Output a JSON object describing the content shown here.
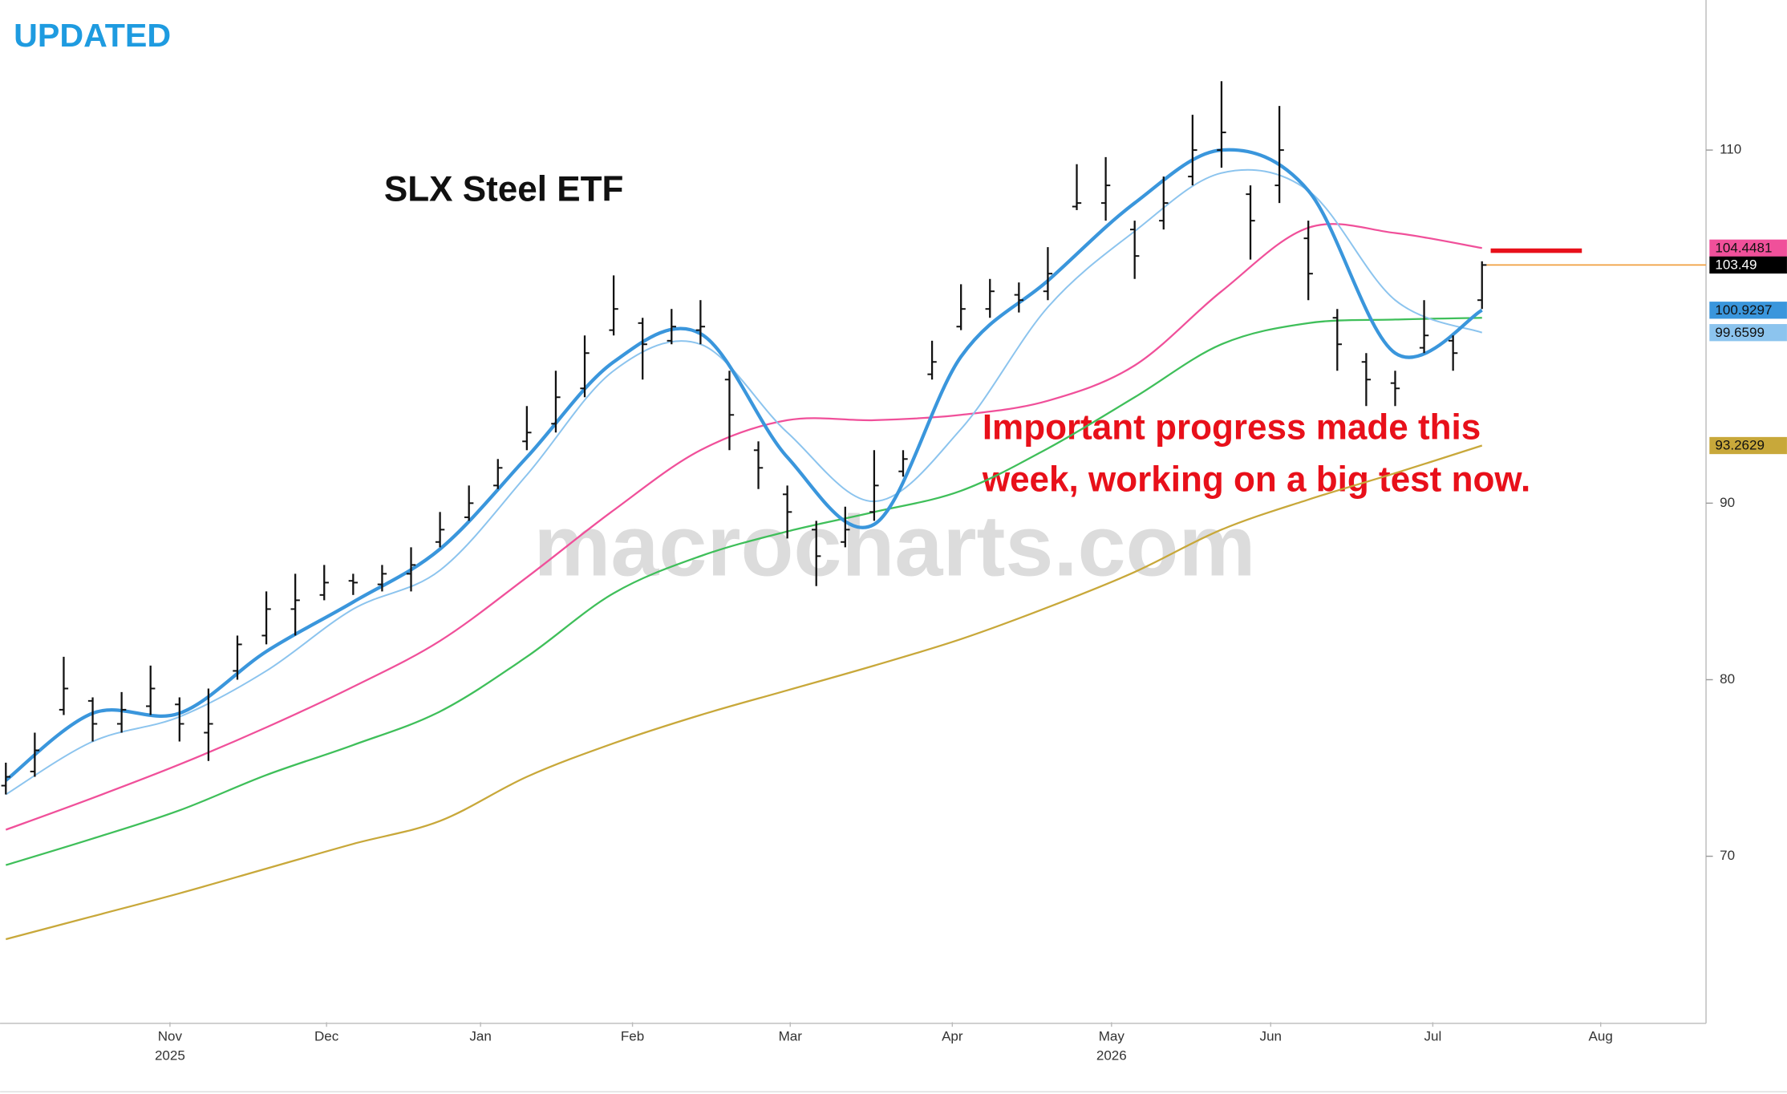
{
  "header": {
    "badge": "UPDATED"
  },
  "chart_data": {
    "type": "ohlc",
    "title": "SLX Steel ETF",
    "watermark": "macrocharts.com",
    "annotation_lines": [
      "Important progress made this",
      "week, working on a big test now."
    ],
    "categories": [
      null,
      null,
      null,
      null,
      null,
      null,
      null,
      null,
      null,
      null,
      null,
      null,
      null,
      null,
      null,
      null,
      null,
      null,
      null,
      null,
      null,
      null,
      null,
      null,
      null,
      null,
      null,
      null,
      null,
      null,
      null,
      null,
      null,
      null,
      null,
      null,
      null,
      null,
      null,
      null,
      null,
      null,
      null,
      null,
      null,
      null,
      null,
      null,
      null,
      null,
      null,
      null
    ],
    "open": [
      74,
      74.8,
      78.3,
      78.8,
      77.5,
      78.5,
      78.6,
      77,
      80.5,
      82.5,
      84,
      84.8,
      85.6,
      85.4,
      86,
      87.8,
      89.2,
      91,
      93.5,
      94.5,
      96.5,
      99.8,
      100.2,
      99.2,
      99.8,
      97,
      93,
      90.5,
      88.5,
      87.8,
      89.5,
      91.8,
      97.3,
      100,
      101,
      101.8,
      102,
      106.8,
      107,
      105.5,
      106,
      108.5,
      110,
      107.5,
      108,
      105,
      100.5,
      98,
      96.8,
      98.8,
      99.2,
      101.5
    ],
    "high": [
      75.3,
      77,
      81.3,
      79,
      79.3,
      80.8,
      79,
      79.5,
      82.5,
      85,
      86,
      86.5,
      86,
      86.5,
      87.5,
      89.5,
      91,
      92.5,
      95.5,
      97.5,
      99.5,
      102.9,
      100.5,
      101,
      101.5,
      97.5,
      93.5,
      91,
      89,
      89.8,
      93,
      93,
      99.2,
      102.4,
      102.7,
      102.5,
      104.5,
      109.2,
      109.6,
      106,
      108.5,
      112,
      113.9,
      108,
      112.5,
      106,
      101,
      98.5,
      97.5,
      101.5,
      99.5,
      103.7
    ],
    "low": [
      73.5,
      74.5,
      78,
      76.5,
      77,
      78,
      76.5,
      75.4,
      80,
      82,
      82.5,
      84.5,
      84.8,
      85,
      85,
      87.5,
      89,
      90.8,
      93,
      94,
      96,
      99.5,
      97,
      99,
      99,
      93,
      90.8,
      88,
      85.3,
      87.5,
      89,
      91.5,
      97,
      99.8,
      100.5,
      100.8,
      101.5,
      106.6,
      106,
      102.7,
      105.5,
      108,
      109,
      103.8,
      107,
      101.5,
      97.5,
      95.5,
      95.5,
      98.5,
      97.5,
      101
    ],
    "close": [
      74.5,
      76,
      79.5,
      77.5,
      78.3,
      79.5,
      77.5,
      77.5,
      82,
      84,
      84.5,
      85.5,
      85.5,
      86,
      86.5,
      88.5,
      90,
      92,
      94,
      96,
      98.5,
      101,
      99,
      100,
      100,
      95,
      92,
      89.5,
      87,
      88.5,
      91,
      92.5,
      98,
      101,
      102,
      101.5,
      103,
      107,
      108,
      104,
      107,
      110,
      111,
      106,
      110,
      103,
      99,
      97,
      96.5,
      99.5,
      98.5,
      103.49
    ],
    "color": "#111111",
    "last_line_color": "#f0a040",
    "last_label_color": "#000000",
    "series": [
      {
        "color": "#f0509a",
        "width": 1.6,
        "last_label": true,
        "x": [
          0,
          3,
          6,
          9,
          12,
          15,
          18,
          21,
          24,
          27,
          30,
          33,
          36,
          39,
          42,
          45,
          48,
          51
        ],
        "values": [
          71.5,
          73.3,
          75.2,
          77.3,
          79.6,
          82.2,
          85.8,
          89.6,
          93.0,
          94.7,
          94.7,
          95.0,
          95.8,
          97.8,
          102.0,
          105.6,
          105.3,
          104.4481
        ]
      },
      {
        "color": "#3fbf5a",
        "width": 1.6,
        "last_label": false,
        "x": [
          0,
          3,
          6,
          9,
          12,
          15,
          18,
          21,
          24,
          27,
          30,
          33,
          36,
          39,
          42,
          45,
          48,
          51
        ],
        "values": [
          69.5,
          71.0,
          72.6,
          74.6,
          76.3,
          78.2,
          81.3,
          84.9,
          87.0,
          88.4,
          89.5,
          90.7,
          93.1,
          96.0,
          99.0,
          100.2,
          100.4,
          100.5
        ]
      },
      {
        "color": "#c8a83a",
        "width": 1.6,
        "last_label": true,
        "x": [
          0,
          3,
          6,
          9,
          12,
          15,
          18,
          21,
          24,
          27,
          30,
          33,
          36,
          39,
          42,
          45,
          48,
          51
        ],
        "values": [
          65.3,
          66.6,
          67.9,
          69.3,
          70.7,
          72.0,
          74.5,
          76.4,
          78.0,
          79.4,
          80.8,
          82.3,
          84.1,
          86.1,
          88.5,
          90.2,
          91.7,
          93.2629
        ]
      },
      {
        "color": "#8cc4ee",
        "width": 1.4,
        "last_label": true,
        "x": [
          0,
          3,
          6,
          9,
          12,
          15,
          18,
          21,
          24,
          27,
          30,
          33,
          36,
          39,
          42,
          45,
          48,
          51
        ],
        "values": [
          73.5,
          76.5,
          77.9,
          80.5,
          84.0,
          86.2,
          91.6,
          97.5,
          99.0,
          94.0,
          90.1,
          94.2,
          101.1,
          105.4,
          108.7,
          107.7,
          101.5,
          99.6599
        ]
      },
      {
        "color": "#3a96dc",
        "width": 3,
        "last_label": true,
        "x": [
          0,
          3,
          6,
          9,
          12,
          15,
          18,
          21,
          24,
          27,
          30,
          33,
          36,
          39,
          42,
          45,
          48,
          51
        ],
        "values": [
          74.3,
          78.1,
          78.1,
          81.6,
          84.4,
          87.4,
          92.6,
          98.0,
          99.6,
          92.6,
          88.8,
          98.3,
          102.6,
          107.0,
          110.0,
          107.7,
          98.5,
          100.9297
        ]
      }
    ],
    "level_line": {
      "value": 104.3,
      "color": "#e8101a",
      "x": [
        51.3,
        54.45
      ]
    },
    "xlim": [
      -0.2,
      58.74
    ],
    "xticks": [
      {
        "value": 5.67,
        "label": "Nov"
      },
      {
        "value": 11.08,
        "label": "Dec"
      },
      {
        "value": 16.4,
        "label": "Jan"
      },
      {
        "value": 21.65,
        "label": "Feb"
      },
      {
        "value": 27.1,
        "label": "Mar"
      },
      {
        "value": 32.7,
        "label": "Apr"
      },
      {
        "value": 38.2,
        "label": "May"
      },
      {
        "value": 43.7,
        "label": "Jun"
      },
      {
        "value": 49.3,
        "label": "Jul"
      },
      {
        "value": 55.1,
        "label": "Aug"
      }
    ],
    "year_labels": [
      {
        "value": 5.67,
        "label": "2025"
      },
      {
        "value": 38.2,
        "label": "2026"
      }
    ],
    "ylim": [
      60.6,
      118.5
    ],
    "yticks": [
      70,
      80,
      90,
      110
    ]
  }
}
